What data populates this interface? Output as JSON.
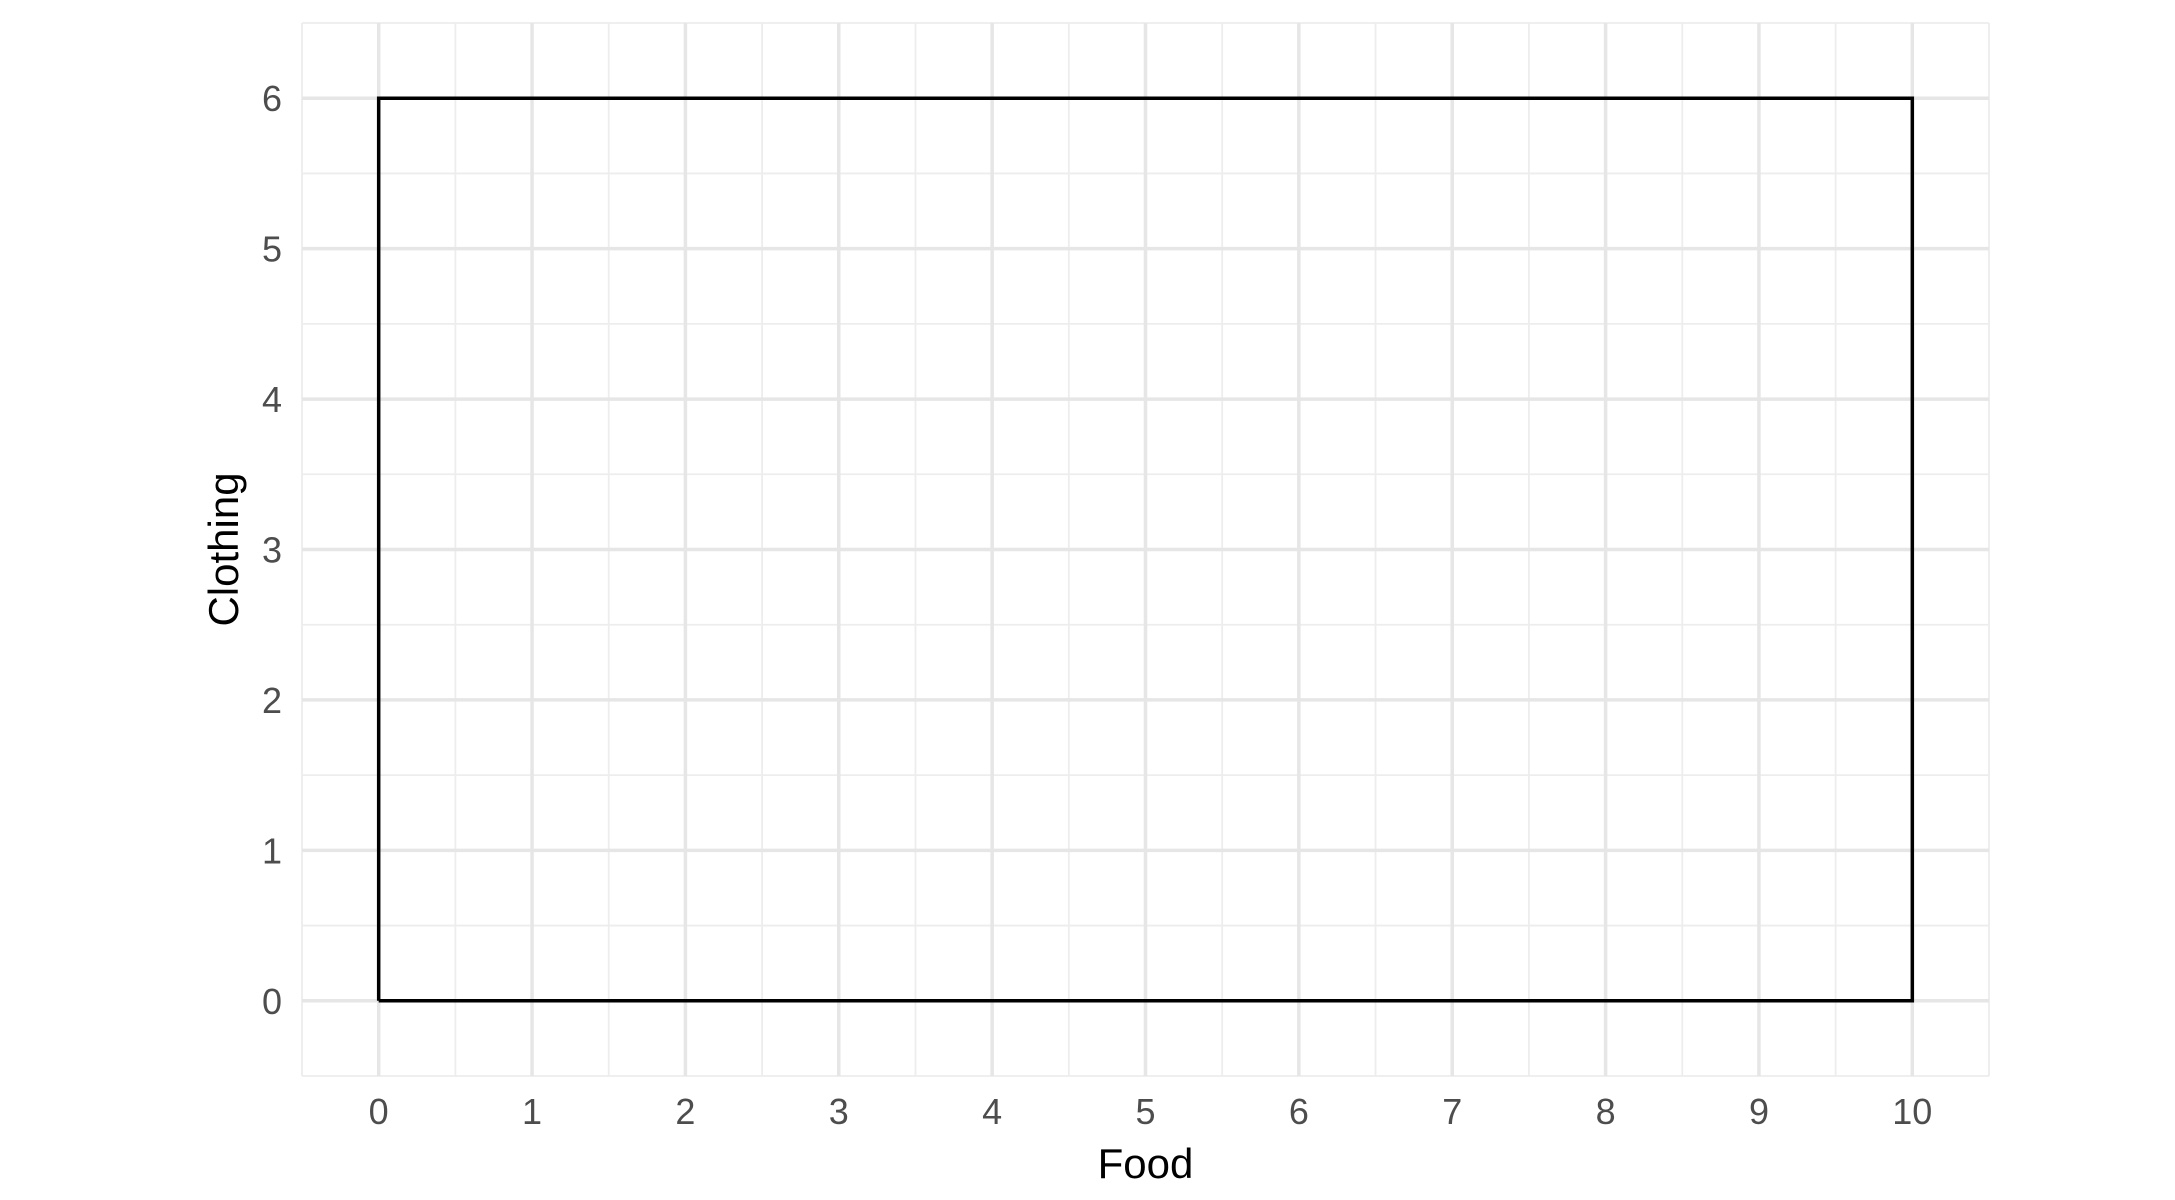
{
  "chart_data": {
    "type": "line",
    "title": "",
    "xlabel": "Food",
    "ylabel": "Clothing",
    "xlim": [
      -0.5,
      10.5
    ],
    "ylim": [
      -0.5,
      6.5
    ],
    "x_ticks": [
      0,
      1,
      2,
      3,
      4,
      5,
      6,
      7,
      8,
      9,
      10
    ],
    "y_ticks": [
      0,
      1,
      2,
      3,
      4,
      5,
      6
    ],
    "grid": true,
    "legend": "none",
    "series": [
      {
        "x": [
          0,
          10,
          10,
          0,
          0
        ],
        "y": [
          0,
          0,
          6,
          6,
          0
        ],
        "color": "#000000"
      }
    ]
  }
}
